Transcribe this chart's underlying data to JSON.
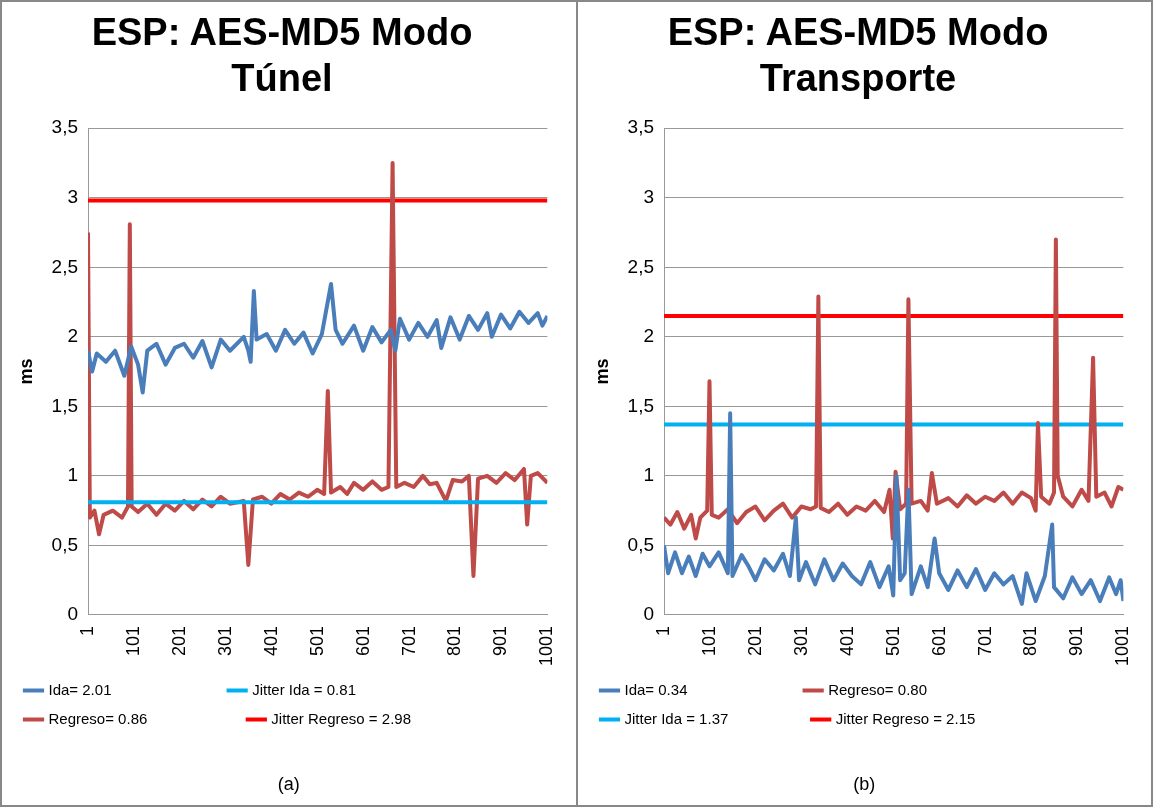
{
  "chart_data": [
    {
      "type": "line",
      "title": "ESP: AES-MD5 Modo Túnel",
      "ylabel": "ms",
      "xlim": [
        1,
        1001
      ],
      "xticks": [
        1,
        101,
        201,
        301,
        401,
        501,
        601,
        701,
        801,
        901,
        1001
      ],
      "ylim": [
        0,
        3.5
      ],
      "yticks": [
        0,
        {
          "value": 0.5,
          "label": "0,5"
        },
        1,
        {
          "value": 1.5,
          "label": "1,5"
        },
        2,
        {
          "value": 2.5,
          "label": "2,5"
        },
        3,
        {
          "value": 3.5,
          "label": "3,5"
        }
      ],
      "grid": "y",
      "legend": "bottom",
      "marker": "none",
      "line_style": "solid",
      "annotations": [
        "(a)"
      ],
      "series": [
        {
          "name": "Ida= 2.01",
          "color": "#4a7ebb",
          "x": [
            1,
            10,
            20,
            40,
            60,
            80,
            95,
            110,
            120,
            130,
            150,
            170,
            190,
            210,
            230,
            250,
            270,
            290,
            310,
            340,
            350,
            355,
            362,
            368,
            390,
            410,
            430,
            450,
            470,
            490,
            510,
            530,
            540,
            555,
            580,
            600,
            620,
            640,
            660,
            670,
            680,
            700,
            720,
            740,
            760,
            770,
            790,
            810,
            830,
            850,
            870,
            880,
            900,
            920,
            940,
            960,
            980,
            990,
            1001
          ],
          "values": [
            1.9,
            1.75,
            1.88,
            1.82,
            1.9,
            1.72,
            1.93,
            1.8,
            1.6,
            1.9,
            1.95,
            1.8,
            1.92,
            1.95,
            1.85,
            1.97,
            1.78,
            1.98,
            1.9,
            2.0,
            1.9,
            1.82,
            2.33,
            1.98,
            2.02,
            1.9,
            2.05,
            1.95,
            2.03,
            1.88,
            2.02,
            2.38,
            2.05,
            1.95,
            2.08,
            1.9,
            2.07,
            1.96,
            2.05,
            1.9,
            2.13,
            1.98,
            2.1,
            2.0,
            2.12,
            1.92,
            2.14,
            1.98,
            2.15,
            2.05,
            2.17,
            2.0,
            2.16,
            2.06,
            2.18,
            2.1,
            2.17,
            2.08,
            2.15
          ]
        },
        {
          "name": "Jitter Ida = 0.81",
          "color": "#00b0f0",
          "x": [
            1,
            1001
          ],
          "values": [
            0.81,
            0.81
          ]
        },
        {
          "name": "Regreso= 0.86",
          "color": "#be4b48",
          "x": [
            1,
            5,
            15,
            25,
            35,
            55,
            75,
            88,
            92,
            96,
            110,
            130,
            150,
            170,
            190,
            210,
            230,
            250,
            270,
            290,
            310,
            340,
            350,
            360,
            380,
            400,
            420,
            440,
            460,
            480,
            500,
            515,
            523,
            530,
            550,
            565,
            580,
            600,
            620,
            640,
            655,
            664,
            672,
            690,
            710,
            730,
            745,
            760,
            780,
            795,
            815,
            830,
            840,
            850,
            870,
            890,
            910,
            930,
            950,
            957,
            965,
            980,
            1001
          ],
          "values": [
            2.75,
            0.7,
            0.75,
            0.58,
            0.72,
            0.75,
            0.7,
            0.78,
            2.81,
            0.78,
            0.74,
            0.8,
            0.72,
            0.8,
            0.75,
            0.82,
            0.76,
            0.83,
            0.78,
            0.85,
            0.8,
            0.82,
            0.36,
            0.83,
            0.85,
            0.8,
            0.87,
            0.83,
            0.88,
            0.85,
            0.9,
            0.87,
            1.61,
            0.88,
            0.92,
            0.87,
            0.95,
            0.9,
            0.96,
            0.9,
            0.92,
            3.25,
            0.92,
            0.95,
            0.92,
            1.0,
            0.94,
            0.95,
            0.82,
            0.97,
            0.96,
            1.0,
            0.28,
            0.98,
            1.0,
            0.95,
            1.02,
            0.97,
            1.05,
            0.65,
            1.0,
            1.02,
            0.95
          ]
        },
        {
          "name": "Jitter Regreso = 2.98",
          "color": "#ff0000",
          "x": [
            1,
            1001
          ],
          "values": [
            2.98,
            2.98
          ]
        }
      ]
    },
    {
      "type": "line",
      "title": "ESP: AES-MD5 Modo Transporte",
      "ylabel": "ms",
      "xlim": [
        1,
        1001
      ],
      "xticks": [
        1,
        101,
        201,
        301,
        401,
        501,
        601,
        701,
        801,
        901,
        1001
      ],
      "ylim": [
        0,
        3.5
      ],
      "yticks": [
        0,
        {
          "value": 0.5,
          "label": "0,5"
        },
        1,
        {
          "value": 1.5,
          "label": "1,5"
        },
        2,
        {
          "value": 2.5,
          "label": "2,5"
        },
        3,
        {
          "value": 3.5,
          "label": "3,5"
        }
      ],
      "grid": "y",
      "legend": "bottom",
      "marker": "none",
      "line_style": "solid",
      "annotations": [
        "(b)"
      ],
      "series": [
        {
          "name": "Ida= 0.34",
          "color": "#4a7ebb",
          "x": [
            1,
            10,
            25,
            40,
            55,
            70,
            85,
            100,
            120,
            140,
            145,
            150,
            170,
            185,
            200,
            220,
            240,
            260,
            275,
            288,
            295,
            310,
            330,
            350,
            370,
            390,
            410,
            430,
            450,
            470,
            490,
            500,
            507,
            515,
            525,
            533,
            540,
            560,
            575,
            590,
            600,
            620,
            640,
            660,
            680,
            700,
            720,
            740,
            760,
            780,
            790,
            810,
            830,
            846,
            850,
            870,
            890,
            910,
            930,
            950,
            970,
            985,
            995,
            1001
          ],
          "values": [
            0.5,
            0.3,
            0.45,
            0.3,
            0.42,
            0.28,
            0.44,
            0.35,
            0.45,
            0.3,
            1.45,
            0.28,
            0.43,
            0.35,
            0.25,
            0.4,
            0.32,
            0.44,
            0.28,
            0.7,
            0.25,
            0.38,
            0.22,
            0.4,
            0.25,
            0.37,
            0.28,
            0.22,
            0.38,
            0.2,
            0.35,
            0.14,
            1.0,
            0.25,
            0.3,
            0.9,
            0.15,
            0.35,
            0.2,
            0.55,
            0.3,
            0.18,
            0.32,
            0.2,
            0.33,
            0.18,
            0.3,
            0.22,
            0.28,
            0.08,
            0.3,
            0.1,
            0.28,
            0.65,
            0.2,
            0.12,
            0.27,
            0.15,
            0.25,
            0.1,
            0.27,
            0.15,
            0.25,
            0.1
          ]
        },
        {
          "name": "Regreso= 0.80",
          "color": "#be4b48",
          "x": [
            1,
            15,
            30,
            45,
            60,
            70,
            80,
            95,
            100,
            105,
            120,
            140,
            160,
            180,
            200,
            220,
            240,
            260,
            280,
            300,
            320,
            332,
            337,
            342,
            360,
            380,
            400,
            420,
            440,
            460,
            480,
            492,
            499,
            505,
            515,
            528,
            533,
            540,
            560,
            575,
            584,
            595,
            620,
            640,
            660,
            680,
            700,
            720,
            740,
            760,
            780,
            800,
            810,
            815,
            822,
            840,
            850,
            854,
            858,
            870,
            890,
            910,
            925,
            935,
            942,
            960,
            975,
            990,
            1001
          ],
          "values": [
            0.7,
            0.65,
            0.74,
            0.62,
            0.72,
            0.55,
            0.7,
            0.75,
            1.68,
            0.72,
            0.7,
            0.76,
            0.66,
            0.74,
            0.78,
            0.68,
            0.75,
            0.8,
            0.7,
            0.78,
            0.76,
            0.78,
            2.29,
            0.77,
            0.74,
            0.8,
            0.72,
            0.78,
            0.75,
            0.82,
            0.74,
            0.9,
            0.55,
            1.03,
            0.76,
            0.8,
            2.27,
            0.8,
            0.82,
            0.75,
            1.02,
            0.8,
            0.84,
            0.78,
            0.86,
            0.8,
            0.85,
            0.82,
            0.88,
            0.8,
            0.88,
            0.84,
            0.75,
            1.38,
            0.85,
            0.8,
            0.88,
            2.7,
            1.0,
            0.85,
            0.78,
            0.9,
            0.82,
            1.85,
            0.85,
            0.88,
            0.78,
            0.92,
            0.9
          ]
        },
        {
          "name": "Jitter Ida = 1.37",
          "color": "#00b0f0",
          "x": [
            1,
            1001
          ],
          "values": [
            1.37,
            1.37
          ]
        },
        {
          "name": "Jitter Regreso = 2.15",
          "color": "#ff0000",
          "x": [
            1,
            1001
          ],
          "values": [
            2.15,
            2.15
          ]
        }
      ]
    }
  ]
}
